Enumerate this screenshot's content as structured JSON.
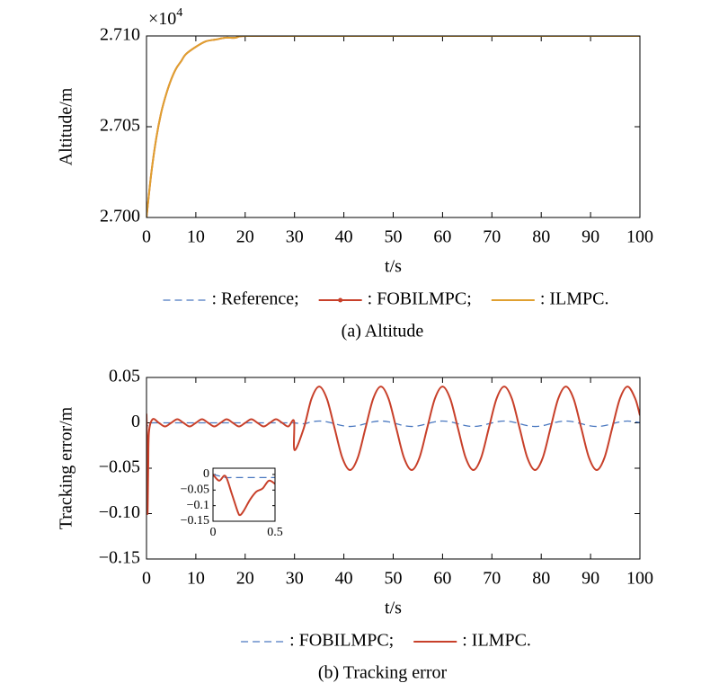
{
  "chart_data": [
    {
      "type": "line",
      "ylabel": "Altitude/m",
      "xlabel": "t/s",
      "caption": "(a) Altitude",
      "axis_multiplier": {
        "base": "×10",
        "exponent": "4"
      },
      "x": [
        0,
        1,
        2,
        3,
        4,
        5,
        6,
        7,
        8,
        10,
        12,
        14,
        16,
        18,
        20,
        30,
        40,
        50,
        60,
        70,
        80,
        90,
        100
      ],
      "series": [
        {
          "name": ": Reference;",
          "color": "#4a78c0",
          "dash": true,
          "values": [
            2.7,
            2.7025,
            2.7044,
            2.7058,
            2.7068,
            2.7076,
            2.7082,
            2.7086,
            2.709,
            2.7094,
            2.7097,
            2.7098,
            2.7099,
            2.7099,
            2.71,
            2.71,
            2.71,
            2.71,
            2.71,
            2.71,
            2.71,
            2.71,
            2.71
          ]
        },
        {
          "name": ": FOBILMPC;",
          "color": "#c8402a",
          "dash": false,
          "marker": "dot",
          "values": [
            2.7,
            2.7025,
            2.7044,
            2.7058,
            2.7068,
            2.7076,
            2.7082,
            2.7086,
            2.709,
            2.7094,
            2.7097,
            2.7098,
            2.7099,
            2.7099,
            2.71,
            2.71,
            2.71,
            2.71,
            2.71,
            2.71,
            2.71,
            2.71,
            2.71
          ]
        },
        {
          "name": ": ILMPC.",
          "color": "#e0a030",
          "dash": false,
          "values": [
            2.7,
            2.7025,
            2.7044,
            2.7058,
            2.7068,
            2.7076,
            2.7082,
            2.7086,
            2.709,
            2.7094,
            2.7097,
            2.7098,
            2.7099,
            2.7099,
            2.71,
            2.71,
            2.71,
            2.71,
            2.71,
            2.71,
            2.71,
            2.71,
            2.71
          ]
        }
      ],
      "xlim": [
        0,
        100
      ],
      "xticks": [
        0,
        10,
        20,
        30,
        40,
        50,
        60,
        70,
        80,
        90,
        100
      ],
      "ylim": [
        2.7,
        2.71
      ],
      "yticks": [
        {
          "value": 2.7,
          "label": "2.700"
        },
        2.705,
        {
          "value": 2.71,
          "label": "2.710"
        }
      ]
    },
    {
      "type": "line",
      "ylabel": "Tracking error/m",
      "xlabel": "t/s",
      "caption": "(b) Tracking error",
      "x": [
        0,
        0.1,
        0.2,
        0.35,
        0.5,
        1.25,
        2.5,
        3.75,
        5,
        6.25,
        7.5,
        8.75,
        10,
        11.25,
        12.5,
        13.75,
        15,
        16.25,
        17.5,
        18.75,
        20,
        21.25,
        22.5,
        23.75,
        25,
        26.25,
        27.5,
        28.75,
        29.9,
        30,
        31.875,
        33.4375,
        35,
        36.5625,
        38.125,
        39.6875,
        41.25,
        42.8125,
        44.375,
        45.9375,
        47.5,
        49.0625,
        50.625,
        52.1875,
        53.75,
        55.3125,
        56.875,
        58.4375,
        60,
        61.5625,
        63.125,
        64.6875,
        66.25,
        67.8125,
        69.375,
        70.9375,
        72.5,
        74.0625,
        75.625,
        77.1875,
        78.75,
        80.3125,
        81.875,
        83.4375,
        85,
        86.5625,
        88.125,
        89.6875,
        91.25,
        92.8125,
        94.375,
        95.9375,
        97.5,
        99.0625,
        100
      ],
      "series": [
        {
          "name": ": FOBILMPC;",
          "color": "#4a78c0",
          "dash": true,
          "values": [
            0,
            -0.005,
            -0.003,
            -0.002,
            -0.001,
            0,
            0,
            0,
            0,
            0,
            0,
            0,
            0,
            0,
            0,
            0,
            0,
            0,
            0,
            0,
            0,
            0,
            0,
            0,
            0,
            0,
            0,
            0,
            0,
            0,
            -0.001,
            0.0011,
            0.002,
            0.0011,
            -0.001,
            -0.0031,
            -0.004,
            -0.0031,
            -0.001,
            0.0011,
            0.002,
            0.0011,
            -0.001,
            -0.0031,
            -0.004,
            -0.0031,
            -0.001,
            0.0011,
            0.002,
            0.0011,
            -0.001,
            -0.0031,
            -0.004,
            -0.0031,
            -0.001,
            0.0011,
            0.002,
            0.0011,
            -0.001,
            -0.0031,
            -0.004,
            -0.0031,
            -0.001,
            0.0011,
            0.002,
            0.0011,
            -0.001,
            -0.0031,
            -0.004,
            -0.0031,
            -0.001,
            0.0011,
            0.002,
            0.0011,
            0.0003
          ]
        },
        {
          "name": ": ILMPC.",
          "color": "#c8402a",
          "dash": false,
          "values": [
            0.01,
            -0.02,
            -0.1,
            -0.05,
            -0.01,
            0.004,
            0,
            -0.004,
            0,
            0.004,
            0,
            -0.004,
            0,
            0.004,
            0,
            -0.004,
            0,
            0.004,
            0,
            -0.004,
            0,
            0.004,
            0,
            -0.004,
            0,
            0.004,
            0,
            -0.004,
            0.002,
            -0.03,
            -0.006,
            0.0265,
            0.04,
            0.0265,
            -0.006,
            -0.0385,
            -0.052,
            -0.0385,
            -0.006,
            0.0265,
            0.04,
            0.0265,
            -0.006,
            -0.0385,
            -0.052,
            -0.0385,
            -0.006,
            0.0265,
            0.04,
            0.0265,
            -0.006,
            -0.0385,
            -0.052,
            -0.0385,
            -0.006,
            0.0265,
            0.04,
            0.0265,
            -0.006,
            -0.0385,
            -0.052,
            -0.0385,
            -0.006,
            0.0265,
            0.04,
            0.0265,
            -0.006,
            -0.0385,
            -0.052,
            -0.0385,
            -0.006,
            0.0265,
            0.04,
            0.0265,
            0.0082
          ]
        }
      ],
      "xlim": [
        0,
        100
      ],
      "xticks": [
        0,
        10,
        20,
        30,
        40,
        50,
        60,
        70,
        80,
        90,
        100
      ],
      "ylim": [
        -0.15,
        0.05
      ],
      "yticks": [
        0.05,
        0,
        {
          "value": -0.05,
          "label": "−0.05"
        },
        {
          "value": -0.1,
          "label": "−0.10"
        },
        {
          "value": -0.15,
          "label": "−0.15"
        }
      ]
    },
    {
      "type": "line",
      "x": [
        0,
        0.05,
        0.1,
        0.15,
        0.2,
        0.22,
        0.25,
        0.3,
        0.35,
        0.4,
        0.45,
        0.5
      ],
      "series": [
        {
          "color": "#4a78c0",
          "dash": true,
          "values": [
            0,
            -0.005,
            -0.01,
            -0.01,
            -0.01,
            -0.01,
            -0.01,
            -0.01,
            -0.01,
            -0.01,
            -0.01,
            -0.01
          ]
        },
        {
          "color": "#c8402a",
          "dash": false,
          "values": [
            0,
            -0.02,
            -0.005,
            -0.06,
            -0.12,
            -0.13,
            -0.115,
            -0.08,
            -0.055,
            -0.045,
            -0.02,
            -0.03
          ]
        }
      ],
      "xlim": [
        0,
        0.5
      ],
      "xticks": [
        0,
        0.5
      ],
      "ylim": [
        -0.15,
        0.02
      ],
      "yticks": [
        0,
        {
          "value": -0.05,
          "label": "−0.05"
        },
        {
          "value": -0.1,
          "label": "−0.1"
        },
        {
          "value": -0.15,
          "label": "−0.15"
        }
      ]
    }
  ]
}
